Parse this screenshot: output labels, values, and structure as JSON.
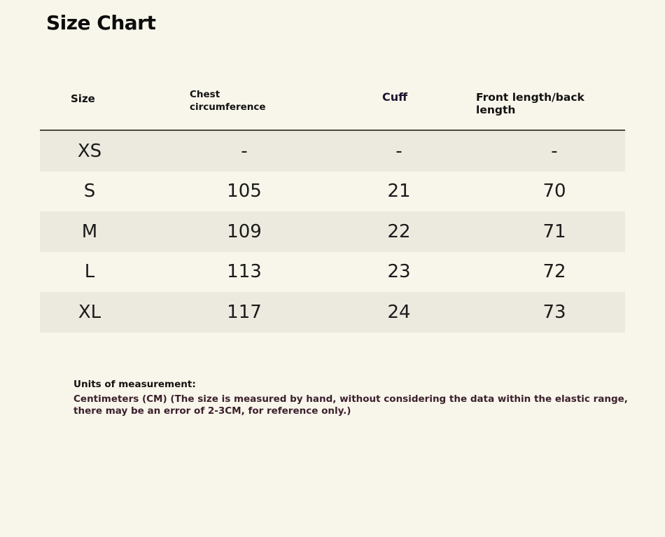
{
  "title": "Size Chart",
  "table": {
    "headers": {
      "size": "Size",
      "chest": "Chest circumference",
      "cuff": "Cuff",
      "front_back": "Front length/back length"
    },
    "rows": [
      {
        "size": "XS",
        "chest": "-",
        "cuff": "-",
        "front_back": "-"
      },
      {
        "size": "S",
        "chest": "105",
        "cuff": "21",
        "front_back": "70"
      },
      {
        "size": "M",
        "chest": "109",
        "cuff": "22",
        "front_back": "71"
      },
      {
        "size": "L",
        "chest": "113",
        "cuff": "23",
        "front_back": "72"
      },
      {
        "size": "XL",
        "chest": "117",
        "cuff": "24",
        "front_back": "73"
      }
    ]
  },
  "notes": {
    "label": "Units of measurement:",
    "text": "Centimeters (CM) (The size is measured by hand, without considering the data within the elastic range, there may be an error of 2-3CM, for reference only.)"
  },
  "colors": {
    "background": "#f8f5ea",
    "row_shade": "#ece9de",
    "header_rule": "#4a4642",
    "notes_text": "#3a1f2c"
  }
}
